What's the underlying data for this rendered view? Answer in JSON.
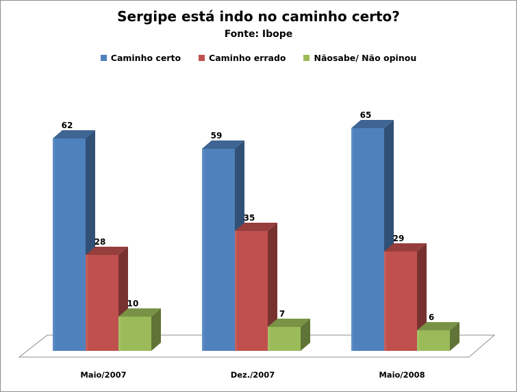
{
  "chart_data": {
    "type": "bar",
    "title": "Sergipe está indo no caminho certo?",
    "subtitle": "Fonte: Ibope",
    "categories": [
      "Maio/2007",
      "Dez./2007",
      "Maio/2008"
    ],
    "series": [
      {
        "name": "Caminho certo",
        "color": "#4f81bd",
        "values": [
          62,
          59,
          65
        ]
      },
      {
        "name": "Caminho errado",
        "color": "#c0504d",
        "values": [
          28,
          35,
          29
        ]
      },
      {
        "name": "Nãosabe/ Não opinou",
        "color": "#9bbb59",
        "values": [
          10,
          7,
          6
        ]
      }
    ],
    "ylim": [
      0,
      70
    ],
    "grid": false,
    "legend_position": "top"
  }
}
